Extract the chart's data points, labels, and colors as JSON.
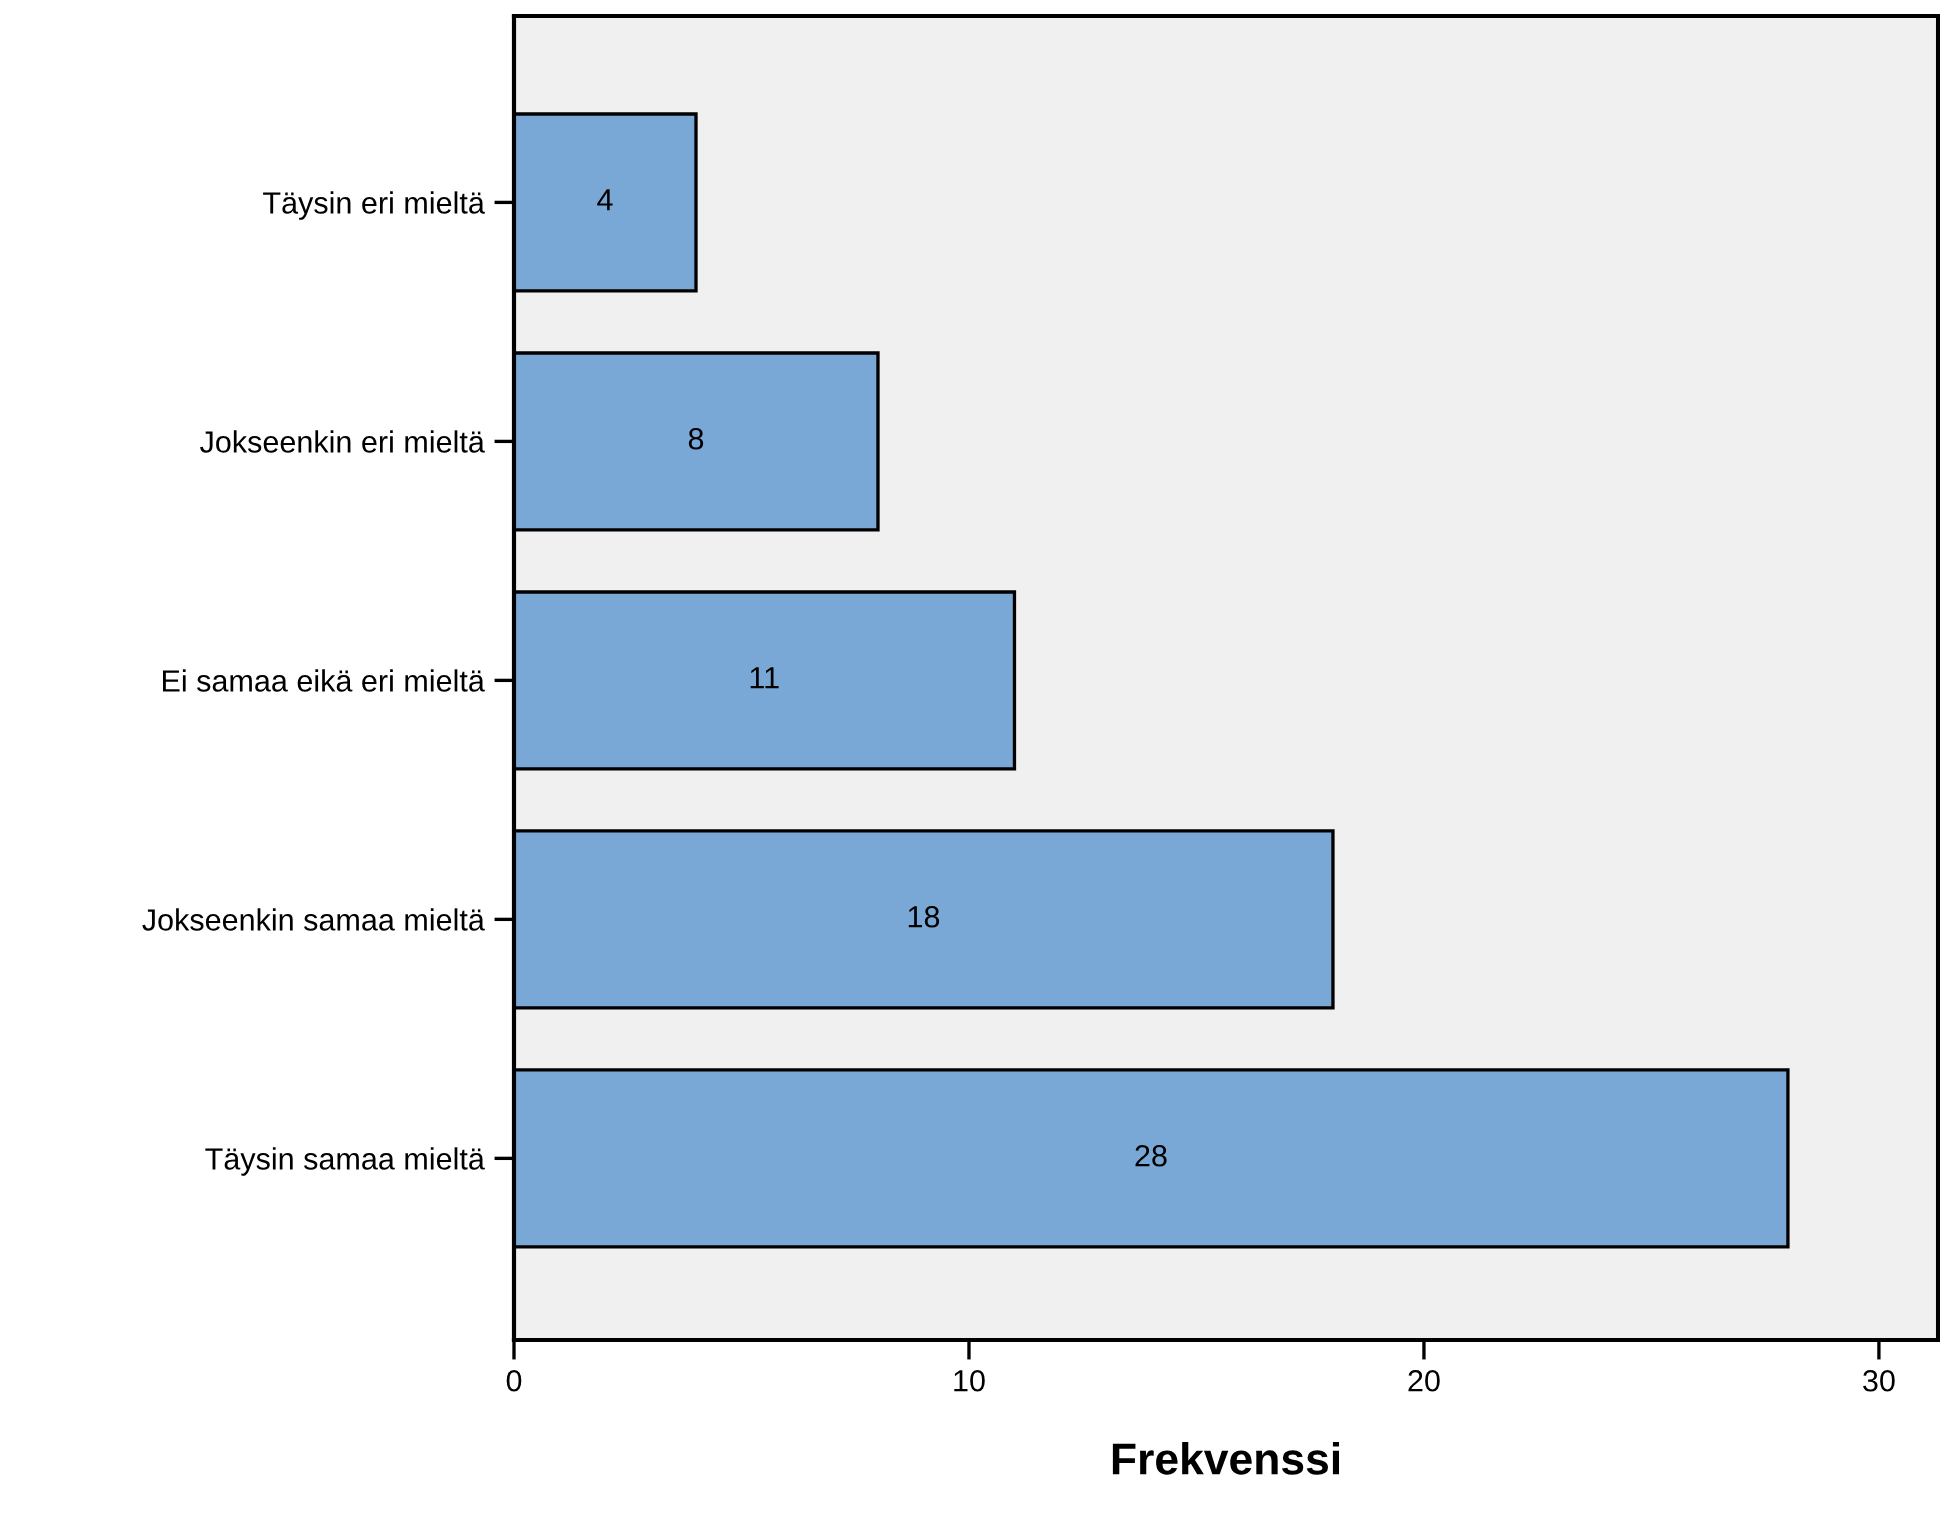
{
  "chart_data": {
    "type": "bar",
    "orientation": "horizontal",
    "xlabel": "Frekvenssi",
    "categories": [
      "Täysin eri mieltä",
      "Jokseenkin eri mieltä",
      "Ei samaa eikä eri mieltä",
      "Jokseenkin samaa mieltä",
      "Täysin samaa mieltä"
    ],
    "values": [
      4,
      8,
      11,
      18,
      28
    ],
    "color": "#7aa8d6",
    "data_labels": true,
    "xlim": [
      0,
      31.3
    ],
    "xticks": [
      0,
      10,
      20,
      30
    ],
    "grid": false,
    "legend": false
  }
}
